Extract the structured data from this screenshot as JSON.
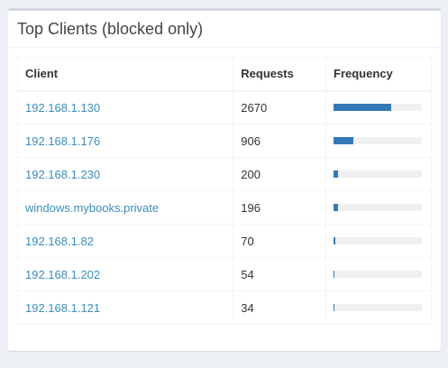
{
  "box": {
    "title": "Top Clients (blocked only)"
  },
  "table": {
    "headers": {
      "client": "Client",
      "requests": "Requests",
      "frequency": "Frequency"
    },
    "rows": [
      {
        "client": "192.168.1.130",
        "requests": "2670",
        "frequency_pct": 65
      },
      {
        "client": "192.168.1.176",
        "requests": "906",
        "frequency_pct": 22
      },
      {
        "client": "192.168.1.230",
        "requests": "200",
        "frequency_pct": 5
      },
      {
        "client": "windows.mybooks.private",
        "requests": "196",
        "frequency_pct": 5
      },
      {
        "client": "192.168.1.82",
        "requests": "70",
        "frequency_pct": 2
      },
      {
        "client": "192.168.1.202",
        "requests": "54",
        "frequency_pct": 1
      },
      {
        "client": "192.168.1.121",
        "requests": "34",
        "frequency_pct": 1
      }
    ]
  },
  "colors": {
    "link": "#3c8dbc",
    "bar": "#337ab7",
    "bar_track": "#f0f0f0"
  }
}
